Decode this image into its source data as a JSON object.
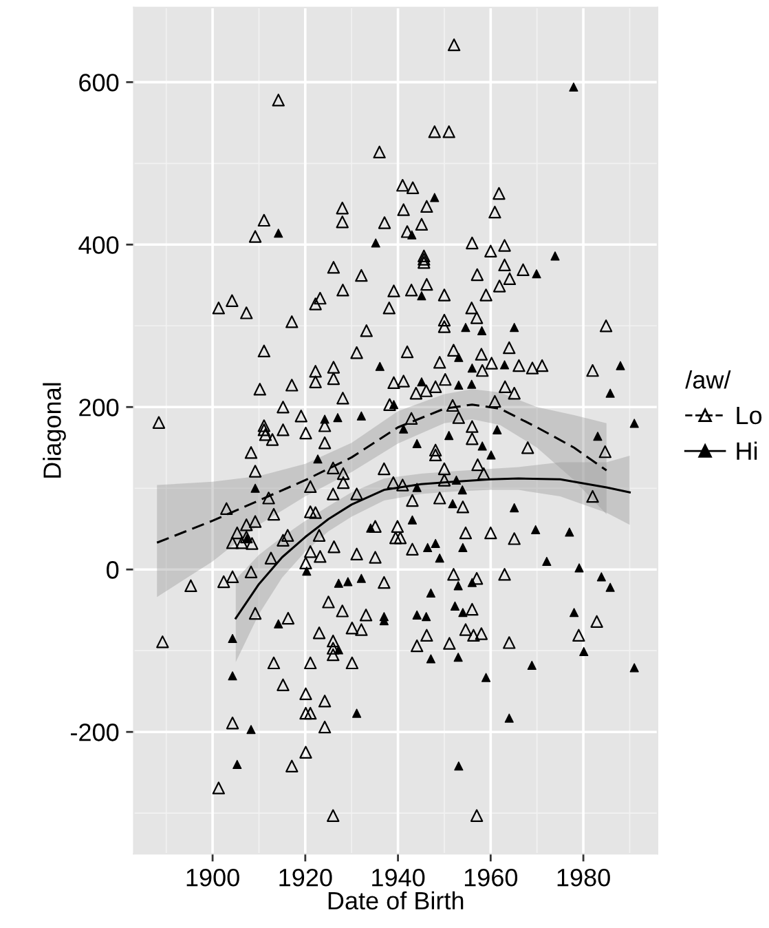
{
  "chart_data": {
    "type": "scatter",
    "xlabel": "Date of Birth",
    "ylabel": "Diagonal",
    "legend_title": "/aw/",
    "legend": "right",
    "grid": true,
    "marker": "triangle",
    "xlim": [
      1883,
      1996
    ],
    "ylim": [
      -350,
      692
    ],
    "xticks": [
      1900,
      1920,
      1940,
      1960,
      1980
    ],
    "yticks": [
      -200,
      0,
      200,
      400,
      600
    ],
    "series": [
      {
        "type": "line",
        "color": "#000000",
        "line_style": "dashed",
        "marker": "none",
        "x": [
          1888,
          1900,
          1910,
          1920,
          1930,
          1940,
          1950,
          1956,
          1962,
          1970,
          1978,
          1985
        ],
        "values": [
          33,
          60,
          85,
          110,
          138,
          175,
          198,
          203,
          198,
          175,
          150,
          122
        ],
        "lower": [
          -34,
          10,
          55,
          90,
          120,
          155,
          180,
          185,
          178,
          150,
          110,
          68
        ],
        "upper": [
          104,
          108,
          115,
          130,
          156,
          195,
          216,
          222,
          218,
          200,
          190,
          180
        ]
      },
      {
        "type": "line",
        "color": "#000000",
        "line_style": "solid",
        "marker": "none",
        "x": [
          1905,
          1910,
          1915,
          1920,
          1925,
          1930,
          1937,
          1945,
          1952,
          1960,
          1966,
          1975,
          1985,
          1990
        ],
        "values": [
          -60,
          -18,
          15,
          40,
          62,
          80,
          98,
          105,
          108,
          111,
          112,
          111,
          101,
          95
        ],
        "lower": [
          -114,
          -55,
          -10,
          22,
          47,
          65,
          85,
          93,
          96,
          98,
          98,
          90,
          70,
          55
        ],
        "upper": [
          -12,
          18,
          40,
          60,
          78,
          95,
          112,
          118,
          121,
          124,
          126,
          132,
          132,
          140
        ]
      },
      {
        "name": "Lo",
        "color": "#000000",
        "x": [
          1914.2,
          1911.1,
          1909.2,
          1928,
          1928,
          1926.1,
          1928.1,
          1901.3,
          1904.2,
          1907.3,
          1917.1,
          1922.2,
          1923.2,
          1911.1,
          1910.2,
          1917.1,
          1922.2,
          1922.2,
          1926.1,
          1926.1,
          1928.1,
          1915.2,
          1952.1,
          1947.9,
          1951,
          1936,
          1941,
          1943.2,
          1941.2,
          1946.2,
          1961.8,
          1960.9,
          1937.1,
          1945.1,
          1942,
          1956,
          1960,
          1963,
          1945.6,
          1945.6,
          1945.6,
          1963,
          1967,
          1964.1,
          1957.1,
          1932.1,
          1961.9,
          1939.1,
          1942.9,
          1946.2,
          1950,
          1959,
          1938.1,
          1955.9,
          1957,
          1950,
          1950,
          1984.9,
          1933.2,
          1931.1,
          1942,
          1952,
          1949,
          1958,
          1964,
          1960.2,
          1958.2,
          1966.1,
          1969,
          1971.1,
          1982,
          1939.1,
          1941.2,
          1948.1,
          1950.2,
          1963.1,
          1965.1,
          1943.9,
          1946.1,
          1938.2,
          1960.9,
          1888.4,
          1919.1,
          1924.2,
          1911.1,
          1911.1,
          1912.9,
          1911.4,
          1915.2,
          1920.1,
          1924.2,
          1908.3,
          1909.2,
          1926,
          1928.2,
          1921.1,
          1926,
          1912.1,
          1903,
          1913.2,
          1921.1,
          1922.2,
          1909.2,
          1907.3,
          1905.3,
          1907.3,
          1904.3,
          1906.3,
          1908.5,
          1916.2,
          1915.2,
          1923,
          1926.2,
          1921.1,
          1923.2,
          1912.6,
          1920.1,
          1908.3,
          1904.3,
          1902.4,
          1895.3,
          1925,
          1928,
          1909.2,
          1916.3,
          1923,
          1889.2,
          1926,
          1926,
          1926,
          1913.2,
          1921.1,
          1915.2,
          1920.1,
          1924.2,
          1920.1,
          1921.1,
          1904.3,
          1924.2,
          1920.1,
          1917.1,
          1901.3,
          1926,
          1942.9,
          1951.8,
          1953.1,
          1956,
          1956,
          1948.1,
          1948.1,
          1968,
          1984.7,
          1937,
          1928.2,
          1931.1,
          1939,
          1941,
          1950,
          1950,
          1957.2,
          1958.5,
          1943.1,
          1949,
          1954,
          1982,
          1935.1,
          1939.9,
          1939.5,
          1940.5,
          1943.1,
          1954.6,
          1960,
          1965.1,
          1931.1,
          1935.1,
          1937,
          1952,
          1957,
          1963,
          1933.1,
          1956,
          1930.1,
          1932.1,
          1946.2,
          1944.1,
          1951.1,
          1954.6,
          1956.3,
          1958,
          1964,
          1982.9,
          1979,
          1930.1,
          1957
        ],
        "values": [
          578,
          430,
          410,
          445,
          428,
          372,
          344,
          322,
          331,
          316,
          305,
          327,
          334,
          269,
          222,
          227,
          244,
          231,
          249,
          235,
          211,
          200,
          646,
          539,
          539,
          514,
          473,
          470,
          443,
          447,
          463,
          440,
          427,
          425,
          416,
          402,
          392,
          399,
          386,
          378,
          382,
          375,
          369,
          358,
          363,
          362,
          349,
          343,
          344,
          351,
          338,
          338,
          322,
          322,
          310,
          307,
          299,
          300,
          294,
          267,
          268,
          270,
          255,
          265,
          273,
          254,
          245,
          251,
          248,
          251,
          245,
          230,
          232,
          225,
          234,
          225,
          217,
          217,
          220,
          203,
          207,
          181,
          189,
          177,
          177,
          172,
          160,
          166,
          172,
          168,
          156,
          144,
          121,
          125,
          107,
          102,
          93,
          88,
          75,
          68,
          71,
          70,
          59,
          55,
          45,
          40,
          33,
          33,
          32,
          42,
          36,
          42,
          28,
          22,
          16,
          14,
          8,
          -3,
          -9,
          -15,
          -20,
          -40,
          -51,
          -54,
          -60,
          -78,
          -89,
          -88,
          -97,
          -105,
          -115,
          -115,
          -142,
          -153,
          -162,
          -177,
          -177,
          -189,
          -194,
          -225,
          -242,
          -269,
          -303,
          186,
          202,
          187,
          176,
          161,
          147,
          141,
          150,
          145,
          124,
          118,
          93,
          107,
          104,
          124,
          110,
          129,
          118,
          85,
          88,
          77,
          90,
          53,
          53,
          39,
          39,
          25,
          45,
          45,
          38,
          19,
          15,
          -16,
          -6,
          -11,
          -6,
          -56,
          -49,
          -72,
          -74,
          -81,
          -94,
          -91,
          -74,
          -81,
          -79,
          -90,
          -64,
          -81,
          -115,
          -303
        ]
      },
      {
        "name": "Hi",
        "color": "#000000",
        "x": [
          1914.2,
          1977.9,
          1947.9,
          1943,
          1935.2,
          1973.9,
          1969.9,
          1945.1,
          1954.6,
          1958.1,
          1965.1,
          1936.1,
          1953.1,
          1956,
          1963,
          1945.1,
          1953.1,
          1955.9,
          1939.1,
          1985.8,
          1924.2,
          1927,
          1922.7,
          1909.2,
          1907.4,
          1920.3,
          1927.2,
          1929.2,
          1914.2,
          1904.3,
          1904.3,
          1908.3,
          1905.3,
          1932.1,
          1941.2,
          1951,
          1961.4,
          1944.1,
          1958.2,
          1960.1,
          1983.1,
          1944.1,
          1952.6,
          1953.9,
          1951.8,
          1965.1,
          1943.1,
          1934.1,
          1946.4,
          1948.1,
          1949,
          1954,
          1969.7,
          1977,
          1972.1,
          1979.1,
          1983.9,
          1985.8,
          1932.1,
          1947.1,
          1953,
          1956,
          1937,
          1937,
          1944.1,
          1946.1,
          1952.3,
          1954,
          1978,
          1980.1,
          1947.1,
          1953,
          1968.9,
          1959,
          1931.1,
          1964,
          1953.1,
          1988,
          1991,
          1991,
          1927.2
        ],
        "values": [
          414,
          594,
          458,
          412,
          402,
          386,
          364,
          337,
          298,
          294,
          298,
          250,
          261,
          248,
          252,
          231,
          227,
          228,
          203,
          217,
          185,
          187,
          136,
          100,
          38,
          -2,
          -17,
          -15,
          -67,
          -85,
          -131,
          -197,
          -240,
          189,
          173,
          165,
          172,
          155,
          152,
          141,
          164,
          101,
          110,
          98,
          81,
          76,
          61,
          51,
          27,
          32,
          14,
          27,
          49,
          46,
          10,
          2,
          -9,
          -22,
          -11,
          -29,
          -20,
          -16,
          -58,
          -63,
          -56,
          -58,
          -45,
          -53,
          -53,
          -101,
          -110,
          -108,
          -118,
          -133,
          -177,
          -183,
          -242,
          251,
          180,
          -121,
          -99
        ]
      }
    ]
  }
}
